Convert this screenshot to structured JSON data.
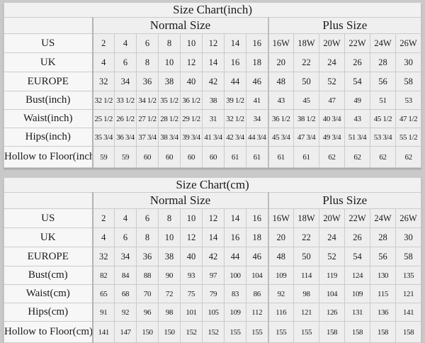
{
  "page": {
    "background_color": "#c9c9c9",
    "cell_color": "#eeeeee",
    "label_cell_color": "#f7f7f7",
    "text_color": "#1a1a1a"
  },
  "chart_data": [
    {
      "type": "table",
      "title": "Size Chart(inch)",
      "group_headers": {
        "normal": "Normal Size",
        "plus": "Plus Size"
      },
      "rows": [
        {
          "label": "US",
          "normal": [
            "2",
            "4",
            "6",
            "8",
            "10",
            "12",
            "14",
            "16"
          ],
          "plus": [
            "16W",
            "18W",
            "20W",
            "22W",
            "24W",
            "26W"
          ]
        },
        {
          "label": "UK",
          "normal": [
            "4",
            "6",
            "8",
            "10",
            "12",
            "14",
            "16",
            "18"
          ],
          "plus": [
            "20",
            "22",
            "24",
            "26",
            "28",
            "30"
          ]
        },
        {
          "label": "EUROPE",
          "normal": [
            "32",
            "34",
            "36",
            "38",
            "40",
            "42",
            "44",
            "46"
          ],
          "plus": [
            "48",
            "50",
            "52",
            "54",
            "56",
            "58"
          ]
        },
        {
          "label": "Bust(inch)",
          "normal": [
            "32 1/2",
            "33 1/2",
            "34 1/2",
            "35 1/2",
            "36 1/2",
            "38",
            "39 1/2",
            "41"
          ],
          "plus": [
            "43",
            "45",
            "47",
            "49",
            "51",
            "53"
          ]
        },
        {
          "label": "Waist(inch)",
          "normal": [
            "25 1/2",
            "26 1/2",
            "27 1/2",
            "28 1/2",
            "29 1/2",
            "31",
            "32 1/2",
            "34"
          ],
          "plus": [
            "36 1/2",
            "38 1/2",
            "40 3/4",
            "43",
            "45 1/2",
            "47 1/2"
          ]
        },
        {
          "label": "Hips(inch)",
          "normal": [
            "35 3/4",
            "36 3/4",
            "37 3/4",
            "38 3/4",
            "39 3/4",
            "41 3/4",
            "42 3/4",
            "44 3/4"
          ],
          "plus": [
            "45 3/4",
            "47 3/4",
            "49 3/4",
            "51 3/4",
            "53 3/4",
            "55 1/2"
          ]
        },
        {
          "label": "Hollow to Floor(inch)",
          "normal": [
            "59",
            "59",
            "60",
            "60",
            "60",
            "60",
            "61",
            "61"
          ],
          "plus": [
            "61",
            "61",
            "62",
            "62",
            "62",
            "62"
          ]
        }
      ]
    },
    {
      "type": "table",
      "title": "Size Chart(cm)",
      "group_headers": {
        "normal": "Normal Size",
        "plus": "Plus Size"
      },
      "rows": [
        {
          "label": "US",
          "normal": [
            "2",
            "4",
            "6",
            "8",
            "10",
            "12",
            "14",
            "16"
          ],
          "plus": [
            "16W",
            "18W",
            "20W",
            "22W",
            "24W",
            "26W"
          ]
        },
        {
          "label": "UK",
          "normal": [
            "4",
            "6",
            "8",
            "10",
            "12",
            "14",
            "16",
            "18"
          ],
          "plus": [
            "20",
            "22",
            "24",
            "26",
            "28",
            "30"
          ]
        },
        {
          "label": "EUROPE",
          "normal": [
            "32",
            "34",
            "36",
            "38",
            "40",
            "42",
            "44",
            "46"
          ],
          "plus": [
            "48",
            "50",
            "52",
            "54",
            "56",
            "58"
          ]
        },
        {
          "label": "Bust(cm)",
          "normal": [
            "82",
            "84",
            "88",
            "90",
            "93",
            "97",
            "100",
            "104"
          ],
          "plus": [
            "109",
            "114",
            "119",
            "124",
            "130",
            "135"
          ]
        },
        {
          "label": "Waist(cm)",
          "normal": [
            "65",
            "68",
            "70",
            "72",
            "75",
            "79",
            "83",
            "86"
          ],
          "plus": [
            "92",
            "98",
            "104",
            "109",
            "115",
            "121"
          ]
        },
        {
          "label": "Hips(cm)",
          "normal": [
            "91",
            "92",
            "96",
            "98",
            "101",
            "105",
            "109",
            "112"
          ],
          "plus": [
            "116",
            "121",
            "126",
            "131",
            "136",
            "141"
          ]
        },
        {
          "label": "Hollow to Floor(cm)",
          "normal": [
            "141",
            "147",
            "150",
            "150",
            "152",
            "152",
            "155",
            "155"
          ],
          "plus": [
            "155",
            "155",
            "158",
            "158",
            "158",
            "158"
          ]
        }
      ]
    }
  ]
}
